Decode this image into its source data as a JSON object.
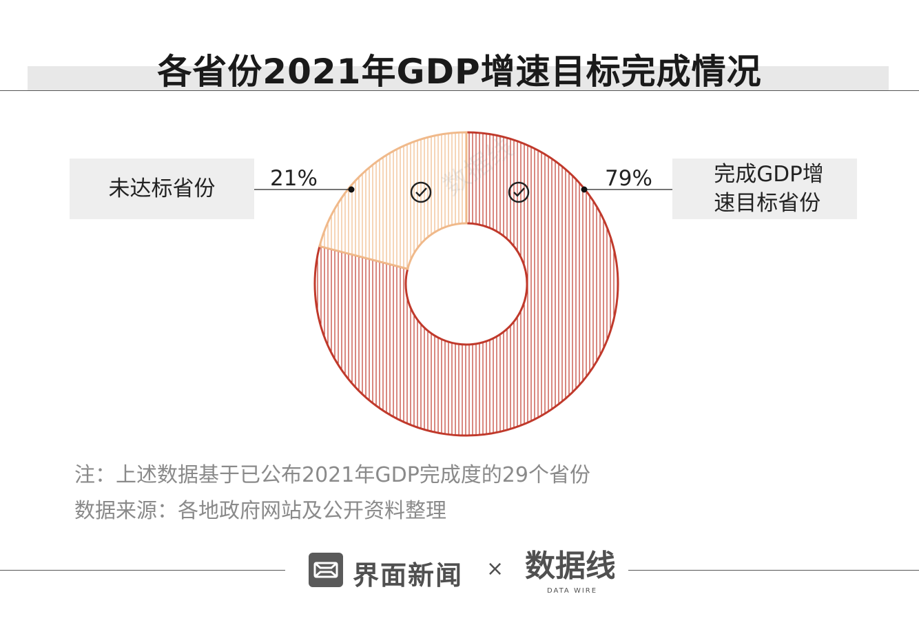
{
  "title": "各省份2021年GDP增速目标完成情况",
  "chart_data": {
    "type": "pie",
    "subtype": "donut",
    "series": [
      {
        "label": "完成GDP增速目标省份",
        "value": 79,
        "display": "79%",
        "color": "#c0392b"
      },
      {
        "label": "未达标省份",
        "value": 21,
        "display": "21%",
        "color": "#f0b98a"
      }
    ]
  },
  "labels": {
    "left_box": "未达标省份",
    "right_box_line1": "完成GDP增",
    "right_box_line2": "速目标省份",
    "left_pct": "21%",
    "right_pct": "79%"
  },
  "notes": {
    "line1": "注：上述数据基于已公布2021年GDP完成度的29个省份",
    "line2": "数据来源：各地政府网站及公开资料整理"
  },
  "footer": {
    "brand_name": "界面新闻",
    "separator": "×"
  },
  "watermark": {
    "text": "数据线",
    "subtext": "DATA WIRE"
  }
}
